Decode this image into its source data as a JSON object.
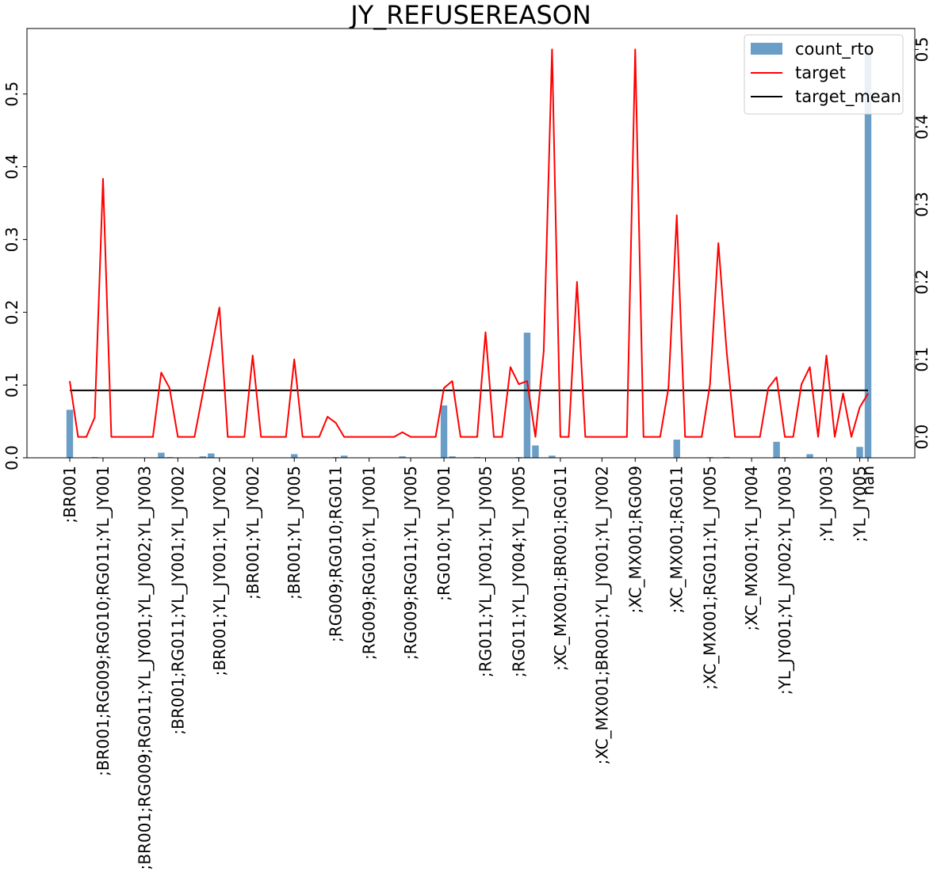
{
  "chart_data": {
    "type": "bar+line",
    "title": "JY_REFUSEREASON",
    "xlabel": "",
    "ylabel_left": "",
    "ylabel_right": "",
    "ylim_left": [
      0,
      0.59
    ],
    "ylim_right": [
      -0.027,
      0.527
    ],
    "yticks_left": [
      0.0,
      0.1,
      0.2,
      0.3,
      0.4,
      0.5
    ],
    "yticks_right": [
      0.0,
      0.1,
      0.2,
      0.3,
      0.4,
      0.5
    ],
    "grid": false,
    "legend_position": "top-right",
    "colors": {
      "count_rto": "#6a9ec7",
      "target": "#ff0000",
      "target_mean": "#000000"
    },
    "legend": [
      "count_rto",
      "target",
      "target_mean"
    ],
    "n_categories": 97,
    "tick_labels": [
      {
        "index": 0,
        "text": ";BR001"
      },
      {
        "index": 4,
        "text": ";BR001;RG009;RG010;RG011;YL_JY001"
      },
      {
        "index": 9,
        "text": ";BR001;RG009;RG011;YL_JY001;YL_JY002;YL_JY003"
      },
      {
        "index": 13,
        "text": ";BR001;RG011;YL_JY001;YL_JY002"
      },
      {
        "index": 18,
        "text": ";BR001;YL_JY001;YL_JY002"
      },
      {
        "index": 22,
        "text": ";BR001;YL_JY002"
      },
      {
        "index": 27,
        "text": ";BR001;YL_JY005"
      },
      {
        "index": 32,
        "text": ";RG009;RG010;RG011"
      },
      {
        "index": 36,
        "text": ";RG009;RG010;YL_JY001"
      },
      {
        "index": 41,
        "text": ";RG009;RG011;YL_JY005"
      },
      {
        "index": 45,
        "text": ";RG010;YL_JY001"
      },
      {
        "index": 50,
        "text": ";RG011;YL_JY001;YL_JY005"
      },
      {
        "index": 54,
        "text": ";RG011;YL_JY004;YL_JY005"
      },
      {
        "index": 59,
        "text": ";XC_MX001;BR001;RG011"
      },
      {
        "index": 64,
        "text": ";XC_MX001;BR001;YL_JY001;YL_JY002"
      },
      {
        "index": 68,
        "text": ";XC_MX001;RG009"
      },
      {
        "index": 73,
        "text": ";XC_MX001;RG011"
      },
      {
        "index": 77,
        "text": ";XC_MX001;RG011;YL_JY005"
      },
      {
        "index": 82,
        "text": ";XC_MX001;YL_JY004"
      },
      {
        "index": 86,
        "text": ";YL_JY001;YL_JY002;YL_JY003"
      },
      {
        "index": 91,
        "text": ";YL_JY003"
      },
      {
        "index": 95,
        "text": ";YL_JY005"
      },
      {
        "index": 96,
        "text": "nan"
      }
    ],
    "count_rto": [
      0.066,
      0,
      0,
      0.001,
      0,
      0,
      0,
      0,
      0,
      0,
      0,
      0.007,
      0.001,
      0,
      0,
      0,
      0.002,
      0.006,
      0,
      0,
      0,
      0,
      0,
      0,
      0,
      0,
      0,
      0.005,
      0,
      0,
      0,
      0,
      0.001,
      0.003,
      0,
      0,
      0,
      0,
      0,
      0,
      0.002,
      0,
      0,
      0,
      0,
      0.072,
      0.002,
      0,
      0,
      0.001,
      0,
      0,
      0,
      0,
      0.001,
      0.172,
      0.017,
      0,
      0.003,
      0,
      0,
      0,
      0,
      0,
      0,
      0,
      0,
      0,
      0,
      0,
      0,
      0,
      0,
      0.025,
      0,
      0,
      0,
      0.001,
      0,
      0.001,
      0,
      0,
      0,
      0,
      0,
      0.022,
      0.001,
      0,
      0,
      0.005,
      0,
      0,
      0,
      0,
      0,
      0.015,
      0.56
    ],
    "target": [
      0.072,
      0,
      0,
      0.025,
      0.333,
      0,
      0,
      0,
      0,
      0,
      0,
      0.083,
      0.063,
      0,
      0,
      0,
      0.056,
      0.111,
      0.167,
      0,
      0,
      0,
      0.105,
      0,
      0,
      0,
      0,
      0.1,
      0,
      0,
      0,
      0.026,
      0.018,
      0,
      0,
      0,
      0,
      0,
      0,
      0,
      0.006,
      0,
      0,
      0,
      0,
      0.063,
      0.072,
      0,
      0,
      0,
      0.135,
      0,
      0,
      0.09,
      0.068,
      0.072,
      0,
      0.111,
      0.5,
      0,
      0,
      0.2,
      0,
      0,
      0,
      0,
      0,
      0,
      0.5,
      0,
      0,
      0,
      0.063,
      0.286,
      0,
      0,
      0,
      0.068,
      0.25,
      0.11,
      0,
      0,
      0,
      0,
      0.063,
      0.077,
      0,
      0,
      0.068,
      0.09,
      0,
      0.105,
      0,
      0.056,
      0,
      0.038,
      0.056
    ],
    "target_mean": 0.06
  }
}
